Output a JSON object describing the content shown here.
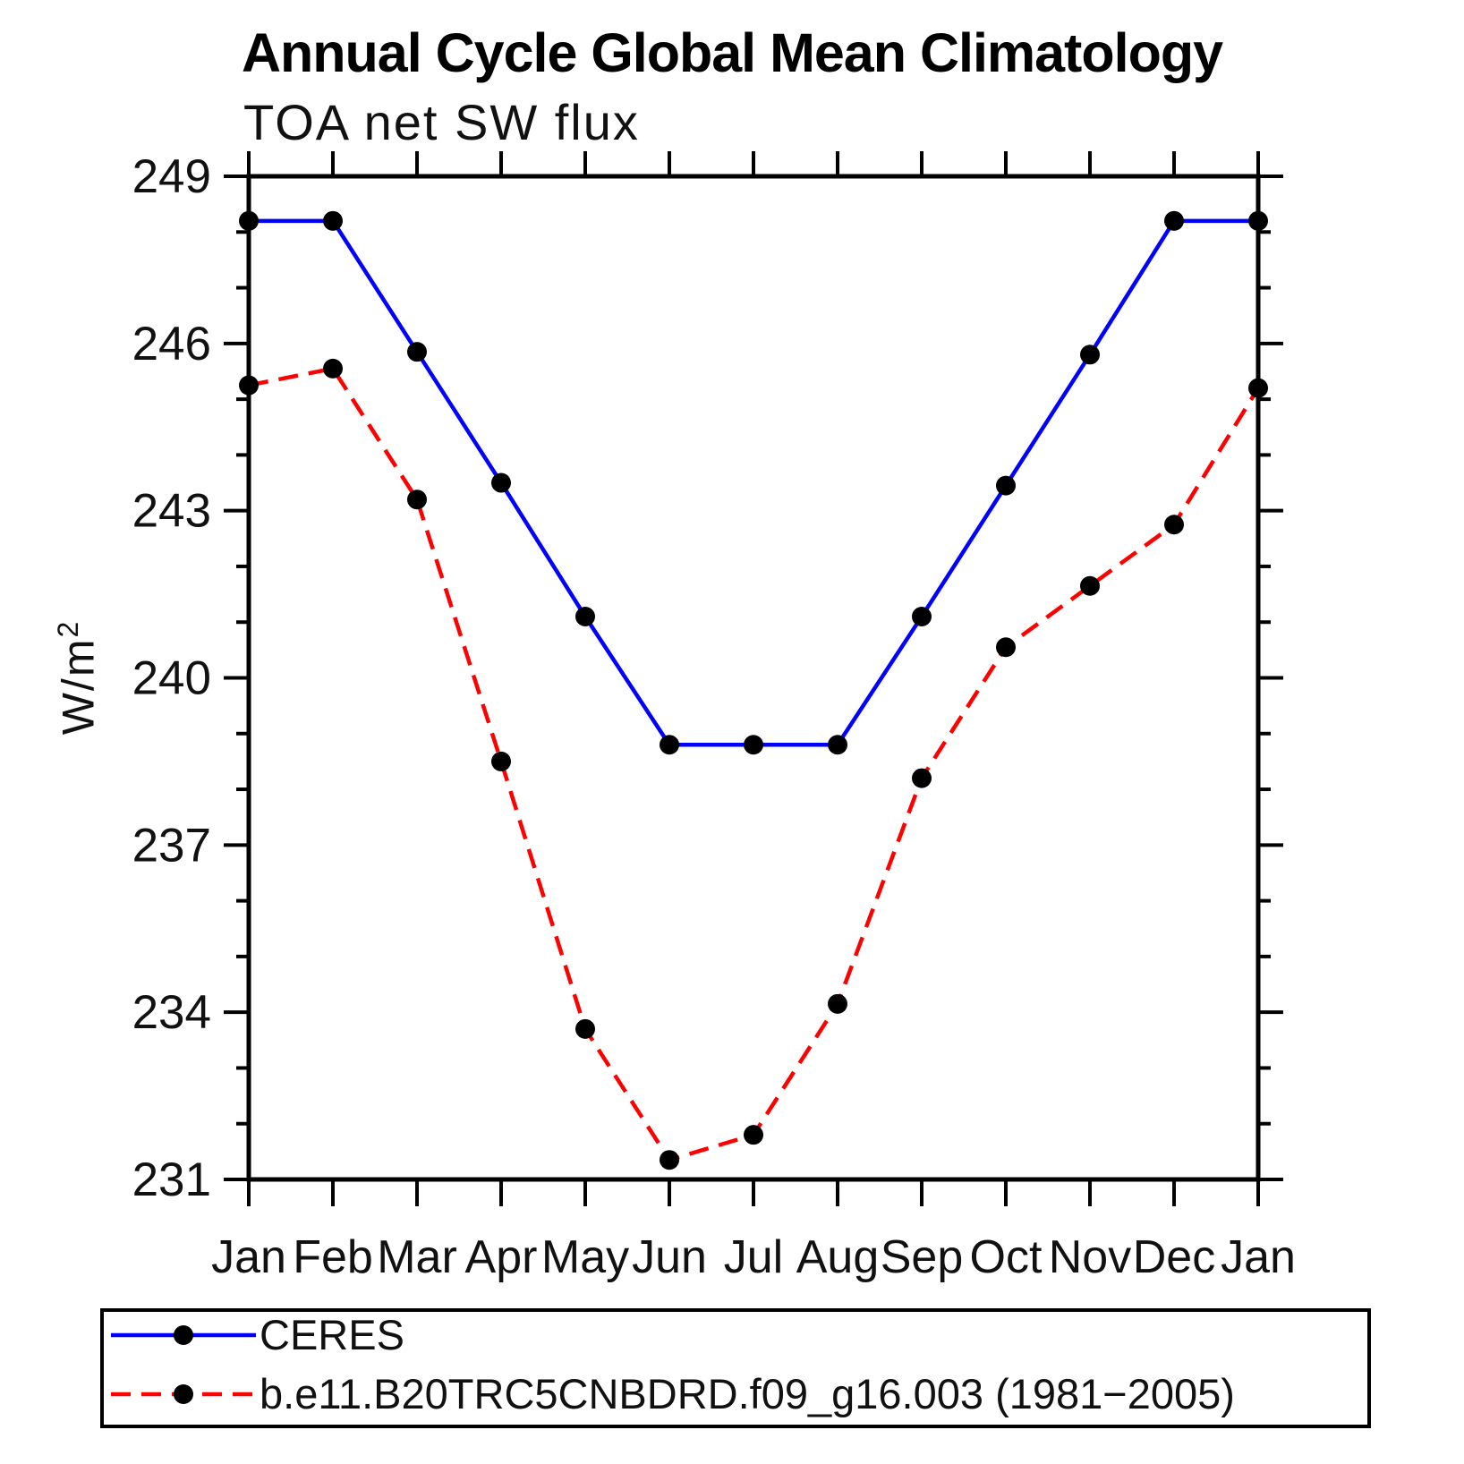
{
  "chart_data": {
    "type": "line",
    "title": "Annual Cycle Global Mean Climatology",
    "subtitle": "TOA net SW flux",
    "ylabel": {
      "base": "W/m",
      "sup": "2"
    },
    "x_categories": [
      "Jan",
      "Feb",
      "Mar",
      "Apr",
      "May",
      "Jun",
      "Jul",
      "Aug",
      "Sep",
      "Oct",
      "Nov",
      "Dec",
      "Jan"
    ],
    "ylim": [
      231,
      249
    ],
    "y_major_ticks": [
      231,
      234,
      237,
      240,
      243,
      246,
      249
    ],
    "y_minor_step": 1,
    "grid": false,
    "legend_position": "bottom-left-box",
    "axis_color": "#000000",
    "marker_color": "#000000",
    "series": [
      {
        "name": "CERES",
        "color": "#0000ff",
        "style": "solid",
        "marker": "circle",
        "values": [
          248.2,
          248.2,
          245.85,
          243.5,
          241.1,
          238.8,
          238.8,
          238.8,
          241.1,
          243.45,
          245.8,
          248.2,
          248.2
        ]
      },
      {
        "name": "b.e11.B20TRC5CNBDRD.f09_g16.003 (1981−2005)",
        "color": "#ff0000",
        "style": "dashed",
        "marker": "circle",
        "values": [
          245.25,
          245.55,
          243.2,
          238.5,
          233.7,
          231.35,
          231.8,
          234.15,
          238.2,
          240.55,
          241.65,
          242.75,
          245.2
        ]
      }
    ]
  }
}
